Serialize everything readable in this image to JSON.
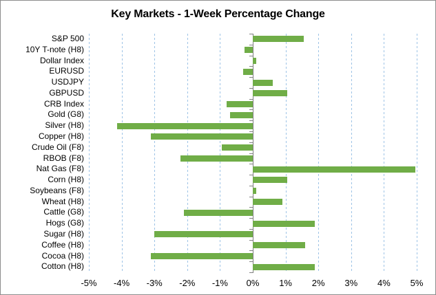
{
  "chart_data": {
    "type": "bar",
    "orientation": "horizontal",
    "title": "Key Markets - 1-Week Percentage Change",
    "categories": [
      "S&P 500",
      "10Y T-note (H8)",
      "Dollar Index",
      "EURUSD",
      "USDJPY",
      "GBPUSD",
      "CRB Index",
      "Gold (G8)",
      "Silver (H8)",
      "Copper (H8)",
      "Crude Oil (F8)",
      "RBOB (F8)",
      "Nat Gas (F8)",
      "Corn (H8)",
      "Soybeans (F8)",
      "Wheat (H8)",
      "Cattle (G8)",
      "Hogs (G8)",
      "Sugar (H8)",
      "Coffee (H8)",
      "Cocoa (H8)",
      "Cotton (H8)"
    ],
    "values": [
      1.55,
      -0.25,
      0.1,
      -0.3,
      0.6,
      1.05,
      -0.8,
      -0.7,
      -4.15,
      -3.1,
      -0.95,
      -2.2,
      4.95,
      1.05,
      0.1,
      0.9,
      -2.1,
      1.9,
      -3.0,
      1.6,
      -3.1,
      1.9
    ],
    "value_unit": "%",
    "x_tick_labels": [
      "-5%",
      "-4%",
      "-3%",
      "-2%",
      "-1%",
      "0%",
      "1%",
      "2%",
      "3%",
      "4%",
      "5%"
    ],
    "xlim": [
      -5,
      5
    ],
    "grid": "vertical-dashed",
    "legend_position": "none",
    "colors": {
      "bar": "#70AD47",
      "gridline": "#9DC3E6",
      "axis": "#7F7F7F",
      "text": "#000000",
      "background": "#FFFFFF",
      "border": "#8C8C8C"
    }
  }
}
